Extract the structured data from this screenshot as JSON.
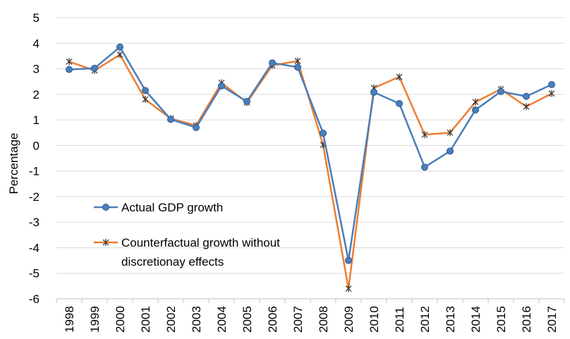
{
  "chart_data": {
    "type": "line",
    "title": "",
    "xlabel": "",
    "ylabel": "Percentage",
    "ylim": [
      -6,
      5
    ],
    "yticks": [
      5,
      4,
      3,
      2,
      1,
      0,
      -1,
      -2,
      -3,
      -4,
      -5,
      -6
    ],
    "grid": "horizontal",
    "legend_position": "lower-left",
    "categories": [
      "1998",
      "1999",
      "2000",
      "2001",
      "2002",
      "2003",
      "2004",
      "2005",
      "2006",
      "2007",
      "2008",
      "2009",
      "2010",
      "2011",
      "2012",
      "2013",
      "2014",
      "2015",
      "2016",
      "2017"
    ],
    "series": [
      {
        "name": "Actual GDP growth",
        "color": "#4a7ebb",
        "marker": "circle",
        "values": [
          2.97,
          3.02,
          3.85,
          2.15,
          1.02,
          0.7,
          2.33,
          1.72,
          3.23,
          3.06,
          0.48,
          -4.5,
          2.08,
          1.64,
          -0.85,
          -0.22,
          1.39,
          2.11,
          1.92,
          2.38
        ]
      },
      {
        "name": "Counterfactual growth without\ndiscretionay effects",
        "color": "#ed7d31",
        "marker": "star",
        "values": [
          3.28,
          2.93,
          3.55,
          1.8,
          1.05,
          0.78,
          2.45,
          1.68,
          3.13,
          3.3,
          0.02,
          -5.6,
          2.25,
          2.68,
          0.42,
          0.5,
          1.7,
          2.2,
          1.52,
          2.03
        ]
      }
    ]
  },
  "legend": {
    "actual_label": "Actual GDP growth",
    "counterfactual_line1": "Counterfactual growth without",
    "counterfactual_line2": "discretionay effects"
  }
}
